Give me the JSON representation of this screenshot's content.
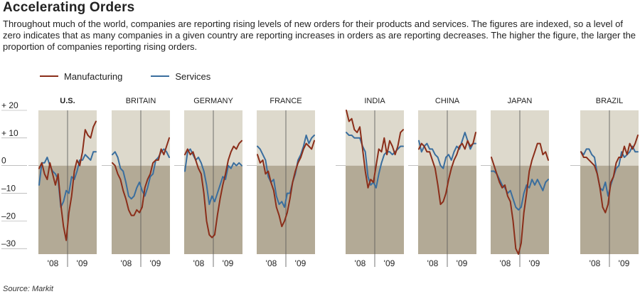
{
  "title": "Accelerating Orders",
  "intro": "Throughout much of the world, companies are reporting rising levels of new orders for their products and services. The figures are indexed, so a level of zero indicates that as many companies in a given country are reporting increases in orders as are reporting decreases. The higher the figure, the larger the proportion of companies reporting rising orders.",
  "source": "Source: Markit",
  "colors": {
    "manufacturing": "#8b2e1a",
    "services": "#3a6e9e",
    "panel_upper": "#ddd9cc",
    "panel_lower": "#b3aa96"
  },
  "chart_data": {
    "type": "line",
    "title": "Accelerating Orders",
    "y_ticks": [
      20,
      10,
      0,
      -10,
      -20,
      -30
    ],
    "y_tick_labels": [
      "+ 20",
      "+ 10",
      "0",
      "–10",
      "–20",
      "–30"
    ],
    "ylim": [
      -32,
      20
    ],
    "x_tick_labels": [
      "'08",
      "'09"
    ],
    "legend": [
      {
        "name": "Manufacturing",
        "color": "#8b2e1a"
      },
      {
        "name": "Services",
        "color": "#3a6e9e"
      }
    ],
    "panels": [
      {
        "name": "U.S.",
        "highlight": true,
        "manufacturing": [
          -1,
          1,
          -3,
          -5,
          1,
          -3,
          -7,
          -3,
          -14,
          -22,
          -27,
          -17,
          -11,
          -2,
          2,
          0,
          5,
          13,
          11,
          10,
          14,
          16
        ],
        "services": [
          -7,
          1,
          1,
          3,
          0,
          -2,
          -3,
          -5,
          -15,
          -13,
          -9,
          -10,
          -4,
          -5,
          -2,
          2,
          2,
          4,
          3,
          2,
          5,
          5
        ]
      },
      {
        "name": "BRITAIN",
        "manufacturing": [
          1,
          0,
          -3,
          -5,
          -9,
          -12,
          -16,
          -18,
          -18,
          -16,
          -17,
          -15,
          -8,
          -5,
          -3,
          1,
          2,
          2,
          6,
          4,
          7,
          10
        ],
        "services": [
          4,
          5,
          3,
          -1,
          -2,
          -6,
          -11,
          -12,
          -11,
          -8,
          -6,
          -9,
          -11,
          -8,
          -4,
          -3,
          2,
          3,
          5,
          6,
          5,
          3
        ]
      },
      {
        "name": "GERMANY",
        "manufacturing": [
          4,
          6,
          4,
          5,
          2,
          -1,
          -3,
          -10,
          -20,
          -25,
          -26,
          -25,
          -18,
          -12,
          -7,
          -3,
          2,
          5,
          7,
          6,
          8,
          9
        ],
        "services": [
          -2,
          5,
          6,
          4,
          2,
          3,
          1,
          -2,
          -7,
          -14,
          -11,
          -13,
          -10,
          -7,
          -4,
          -5,
          0,
          -1,
          1,
          0,
          1,
          0
        ]
      },
      {
        "name": "FRANCE",
        "manufacturing": [
          4,
          1,
          2,
          -3,
          -2,
          -6,
          -9,
          -15,
          -18,
          -22,
          -20,
          -17,
          -12,
          -6,
          -2,
          1,
          3,
          6,
          8,
          7,
          6,
          9
        ],
        "services": [
          7,
          6,
          4,
          2,
          -4,
          -6,
          -5,
          -11,
          -14,
          -13,
          -15,
          -10,
          -10,
          -6,
          -3,
          2,
          4,
          7,
          11,
          8,
          10,
          11
        ]
      },
      {
        "name": "INDIA",
        "manufacturing": [
          20,
          16,
          17,
          13,
          12,
          14,
          6,
          -2,
          -8,
          -5,
          -6,
          0,
          6,
          5,
          10,
          4,
          9,
          7,
          4,
          7,
          12,
          13
        ],
        "services": [
          12,
          11,
          11,
          10,
          10,
          10,
          7,
          5,
          -4,
          -7,
          -6,
          -8,
          -3,
          1,
          4,
          5,
          5,
          4,
          5,
          6,
          7,
          7
        ]
      },
      {
        "name": "CHINA",
        "manufacturing": [
          6,
          8,
          7,
          5,
          5,
          2,
          -1,
          -7,
          -14,
          -13,
          -10,
          -5,
          -1,
          2,
          4,
          7,
          8,
          6,
          9,
          7,
          8,
          12
        ],
        "services": [
          9,
          5,
          7,
          8,
          6,
          6,
          4,
          3,
          0,
          -1,
          3,
          4,
          2,
          5,
          7,
          6,
          9,
          12,
          9,
          6,
          8,
          8
        ]
      },
      {
        "name": "JAPAN",
        "manufacturing": [
          3,
          0,
          -3,
          -6,
          -8,
          -7,
          -11,
          -13,
          -20,
          -30,
          -32,
          -28,
          -17,
          -10,
          -2,
          2,
          5,
          8,
          8,
          4,
          5,
          2
        ],
        "services": [
          -2,
          -2,
          -3,
          -5,
          -7,
          -8,
          -10,
          -9,
          -12,
          -15,
          -16,
          -15,
          -10,
          -7,
          -8,
          -5,
          -7,
          -5,
          -7,
          -9,
          -6,
          -5
        ]
      },
      {
        "name": "BRAZIL",
        "manufacturing": [
          5,
          3,
          3,
          2,
          1,
          0,
          -3,
          -8,
          -15,
          -17,
          -14,
          -6,
          -4,
          1,
          3,
          3,
          7,
          4,
          8,
          6,
          8,
          11
        ],
        "services": [
          5,
          4,
          6,
          6,
          4,
          3,
          -3,
          -8,
          -9,
          -6,
          -11,
          -7,
          -4,
          -1,
          0,
          5,
          3,
          4,
          5,
          7,
          5,
          5
        ]
      }
    ]
  }
}
